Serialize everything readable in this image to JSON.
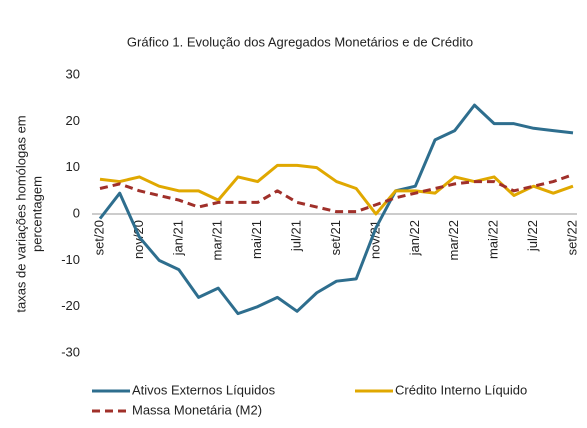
{
  "chart_data": {
    "type": "line",
    "title": "Gráfico 1. Evolução dos Agregados Monetários e de Crédito",
    "y_label": [
      "taxas de variações homólogas  em",
      "percentagem"
    ],
    "categories": [
      "set/20",
      null,
      "nov/20",
      null,
      "jan/21",
      null,
      "mar/21",
      null,
      "mai/21",
      null,
      "jul/21",
      null,
      "set/21",
      null,
      "nov/21",
      null,
      "jan/22",
      null,
      "mar/22",
      null,
      "mai/22",
      null,
      "jul/22",
      null,
      "set/22"
    ],
    "series": [
      {
        "name": "Ativos Externos Líquidos",
        "color": "#2e6e8e",
        "dash": false,
        "values": [
          -1,
          4.5,
          -5,
          -10,
          -12,
          -18,
          -16,
          -21.5,
          -20,
          -18,
          -21,
          -17,
          -14.5,
          -14,
          -3,
          5,
          6,
          16,
          18,
          23.5,
          19.5,
          19.5,
          18.5,
          18,
          17.5
        ]
      },
      {
        "name": "Crédito Interno Líquido",
        "color": "#e0a800",
        "dash": false,
        "values": [
          7.5,
          7,
          8,
          6,
          5,
          5,
          3,
          8,
          7,
          10.5,
          10.5,
          10,
          7,
          5.5,
          0,
          5,
          5,
          4.5,
          8,
          7,
          8,
          4,
          6,
          4.5,
          6
        ]
      },
      {
        "name": "Massa Monetária (M2)",
        "color": "#a0302a",
        "dash": true,
        "values": [
          5.5,
          6.5,
          5,
          4,
          3,
          1.5,
          2.5,
          2.5,
          2.5,
          5,
          2.5,
          1.5,
          0.5,
          0.5,
          2,
          3.5,
          4.5,
          5.5,
          6.5,
          7,
          7,
          5,
          6,
          7,
          8.5
        ]
      }
    ],
    "ylim": [
      -30,
      30
    ],
    "yticks": [
      -30,
      -20,
      -10,
      0,
      10,
      20,
      30
    ],
    "grid": false
  }
}
